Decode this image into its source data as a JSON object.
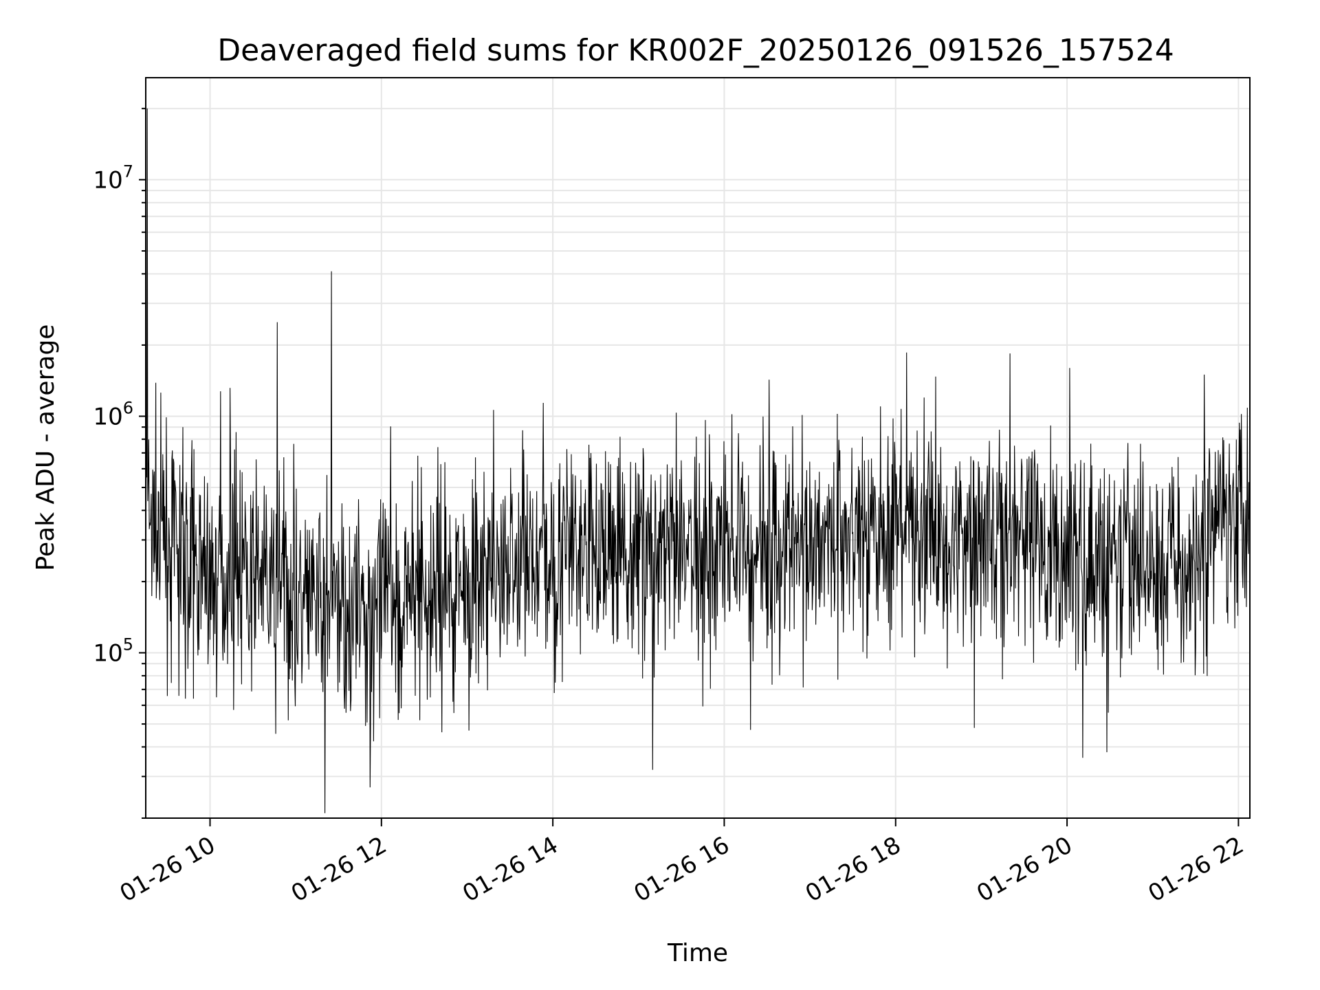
{
  "chart_data": {
    "type": "line",
    "title": "Deaveraged field sums for KR002F_20250126_091526_157524",
    "xlabel": "Time",
    "ylabel": "Peak ADU - average",
    "yscale": "log",
    "grid": true,
    "line_color": "#000000",
    "grid_color": "#e6e6e6",
    "xlim": [
      "01-26 09:15",
      "01-26 22:08"
    ],
    "ylim": [
      20000,
      27000000
    ],
    "x_ticks": [
      "01-26 10",
      "01-26 12",
      "01-26 14",
      "01-26 16",
      "01-26 18",
      "01-26 20",
      "01-26 22"
    ],
    "y_ticks": [
      {
        "value": 100000,
        "base": "10",
        "exp": "5"
      },
      {
        "value": 1000000,
        "base": "10",
        "exp": "6"
      },
      {
        "value": 10000000,
        "base": "10",
        "exp": "7"
      }
    ],
    "series": [
      {
        "values_note_free": true,
        "x": [
          "01-26 09:15",
          "01-26 09:25",
          "01-26 09:40",
          "01-26 10:00",
          "01-26 10:30",
          "01-26 11:00",
          "01-26 11:30",
          "01-26 11:50",
          "01-26 12:30",
          "01-26 13:00",
          "01-26 13:30",
          "01-26 14:00",
          "01-26 14:45",
          "01-26 15:30",
          "01-26 16:00",
          "01-26 16:30",
          "01-26 17:00",
          "01-26 17:30",
          "01-26 18:00",
          "01-26 18:30",
          "01-26 19:00",
          "01-26 19:30",
          "01-26 20:00",
          "01-26 20:30",
          "01-26 21:00",
          "01-26 21:30",
          "01-26 21:50",
          "01-26 22:08"
        ],
        "y": [
          400000,
          300000,
          280000,
          220000,
          200000,
          170000,
          160000,
          150000,
          180000,
          200000,
          230000,
          270000,
          280000,
          260000,
          300000,
          290000,
          310000,
          320000,
          330000,
          320000,
          330000,
          300000,
          250000,
          230000,
          240000,
          230000,
          400000,
          500000
        ],
        "spikes": [
          {
            "x": "01-26 09:16",
            "y": 20000000
          },
          {
            "x": "01-26 10:47",
            "y": 2500000
          },
          {
            "x": "01-26 11:25",
            "y": 4100000
          },
          {
            "x": "01-26 20:02",
            "y": 1600000
          },
          {
            "x": "01-26 18:20",
            "y": 1200000
          },
          {
            "x": "01-26 21:36",
            "y": 1500000
          }
        ],
        "dips": [
          {
            "x": "01-26 11:52",
            "y": 27000
          },
          {
            "x": "01-26 15:10",
            "y": 32000
          },
          {
            "x": "01-26 20:11",
            "y": 36000
          },
          {
            "x": "01-26 20:28",
            "y": 38000
          }
        ]
      }
    ]
  }
}
